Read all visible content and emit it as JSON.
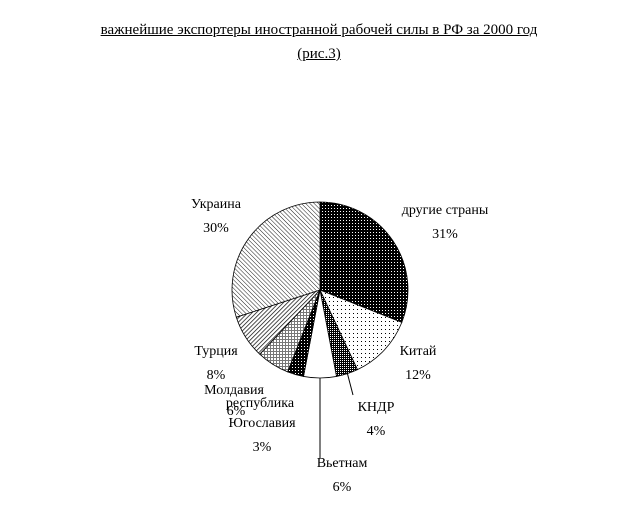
{
  "title_line1": "важнейшие экспортеры иностранной рабочей силы в РФ за 2000 год",
  "title_line2": "(рис.3)",
  "chart_data": {
    "type": "pie",
    "title": "важнейшие экспортеры иностранной рабочей силы в РФ за 2000 год (рис.3)",
    "slices": [
      {
        "name": "другие страны",
        "label": "31%",
        "value": 31,
        "pattern": "dark-dots"
      },
      {
        "name": "Китай",
        "label": "12%",
        "value": 12,
        "pattern": "light-dots"
      },
      {
        "name": "КНДР",
        "label": "4%",
        "value": 4,
        "pattern": "dense-dots"
      },
      {
        "name": "Вьетнам",
        "label": "6%",
        "value": 6,
        "pattern": "white"
      },
      {
        "name": "Югославия",
        "label": "3%",
        "value": 3,
        "pattern": "dark-dots"
      },
      {
        "name": "Молдавия республика",
        "label": "6%",
        "value": 6,
        "pattern": "grid"
      },
      {
        "name": "Турция",
        "label": "8%",
        "value": 8,
        "pattern": "diagonal-dense"
      },
      {
        "name": "Украина",
        "label": "30%",
        "value": 30,
        "pattern": "diagonal"
      }
    ],
    "start_angle_deg": 0,
    "direction": "clockwise"
  }
}
